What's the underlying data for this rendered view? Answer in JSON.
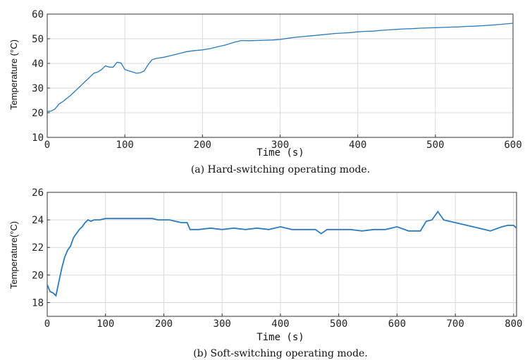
{
  "chart_data": [
    {
      "type": "line",
      "title": "",
      "caption": "(a) Hard-switching operating mode.",
      "xlabel": "Time (s)",
      "ylabel": "Temperature (°C)",
      "xlim": [
        0,
        600
      ],
      "ylim": [
        10,
        60
      ],
      "xticks": [
        0,
        100,
        200,
        300,
        400,
        500,
        600
      ],
      "yticks": [
        10,
        20,
        30,
        40,
        50,
        60
      ],
      "grid": true,
      "color": "#2b7bbd",
      "series": [
        {
          "x": [
            0,
            5,
            10,
            15,
            20,
            30,
            40,
            50,
            55,
            60,
            65,
            70,
            75,
            80,
            85,
            90,
            95,
            100,
            105,
            110,
            115,
            120,
            125,
            130,
            135,
            140,
            150,
            160,
            170,
            180,
            190,
            200,
            210,
            220,
            230,
            240,
            250,
            260,
            270,
            280,
            290,
            300,
            310,
            320,
            330,
            340,
            350,
            360,
            370,
            380,
            390,
            400,
            410,
            420,
            430,
            440,
            450,
            460,
            470,
            480,
            490,
            500,
            510,
            520,
            530,
            540,
            550,
            560,
            570,
            580,
            590,
            600
          ],
          "y": [
            20.5,
            20.7,
            21.5,
            23.5,
            24.5,
            27,
            30,
            33,
            34.5,
            36,
            36.5,
            37.5,
            39,
            38.5,
            38.5,
            40.5,
            40.2,
            37.5,
            37,
            36.5,
            36,
            36.2,
            37,
            39.5,
            41.5,
            42,
            42.5,
            43.2,
            44,
            44.8,
            45.2,
            45.5,
            46,
            46.8,
            47.5,
            48.5,
            49.3,
            49.2,
            49.3,
            49.4,
            49.5,
            49.7,
            50.2,
            50.6,
            50.9,
            51.2,
            51.5,
            51.8,
            52.1,
            52.3,
            52.5,
            52.8,
            53,
            53.1,
            53.4,
            53.6,
            53.8,
            54,
            54.1,
            54.3,
            54.4,
            54.5,
            54.6,
            54.7,
            54.8,
            55,
            55.1,
            55.3,
            55.5,
            55.7,
            56,
            56.3
          ]
        }
      ]
    },
    {
      "type": "line",
      "title": "",
      "caption": "(b) Soft-switching operating mode.",
      "xlabel": "Time (s)",
      "ylabel": "Temperature(°C)",
      "xlim": [
        0,
        805
      ],
      "ylim": [
        17,
        26
      ],
      "xticks": [
        0,
        100,
        200,
        300,
        400,
        500,
        600,
        700,
        800
      ],
      "yticks": [
        18,
        20,
        22,
        24,
        26
      ],
      "grid": true,
      "color": "#2b7bbd",
      "series": [
        {
          "x": [
            0,
            5,
            10,
            15,
            20,
            25,
            30,
            35,
            40,
            45,
            50,
            55,
            60,
            65,
            70,
            75,
            80,
            90,
            100,
            110,
            120,
            130,
            140,
            150,
            160,
            170,
            180,
            190,
            200,
            210,
            220,
            230,
            240,
            245,
            260,
            280,
            300,
            320,
            340,
            360,
            380,
            400,
            420,
            440,
            460,
            470,
            480,
            500,
            520,
            540,
            560,
            580,
            600,
            620,
            640,
            650,
            660,
            670,
            680,
            690,
            700,
            720,
            740,
            760,
            780,
            790,
            800,
            805
          ],
          "y": [
            19.3,
            18.8,
            18.7,
            18.5,
            19.5,
            20.5,
            21.3,
            21.8,
            22.1,
            22.7,
            23.0,
            23.3,
            23.5,
            23.8,
            24.0,
            23.9,
            24.0,
            24.0,
            24.1,
            24.1,
            24.1,
            24.1,
            24.1,
            24.1,
            24.1,
            24.1,
            24.1,
            24.0,
            24.0,
            24.0,
            23.9,
            23.8,
            23.8,
            23.3,
            23.3,
            23.4,
            23.3,
            23.4,
            23.3,
            23.4,
            23.3,
            23.5,
            23.3,
            23.3,
            23.3,
            23.0,
            23.3,
            23.3,
            23.3,
            23.2,
            23.3,
            23.3,
            23.5,
            23.2,
            23.2,
            23.9,
            24.0,
            24.6,
            24.0,
            23.9,
            23.8,
            23.6,
            23.4,
            23.2,
            23.5,
            23.6,
            23.6,
            23.4
          ]
        }
      ]
    }
  ]
}
